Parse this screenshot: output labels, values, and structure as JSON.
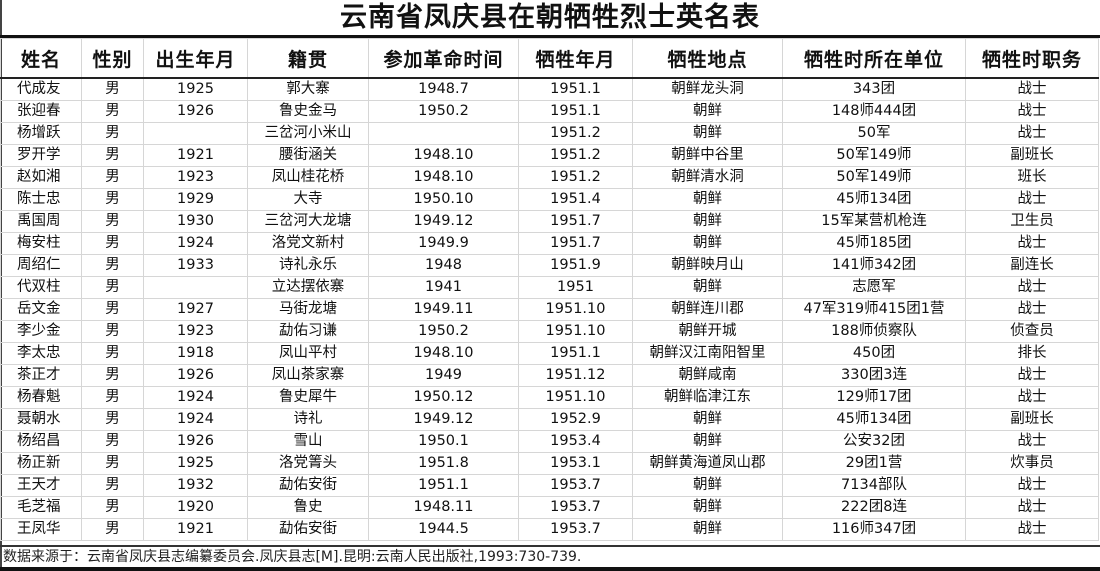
{
  "title": "云南省凤庆县在朝牺牲烈士英名表",
  "columns": [
    "姓名",
    "性别",
    "出生年月",
    "籍贯",
    "参加革命时间",
    "牺牲年月",
    "牺牲地点",
    "牺牲时所在单位",
    "牺牲时职务"
  ],
  "rows": [
    [
      "代成友",
      "男",
      "1925",
      "郭大寨",
      "1948.7",
      "1951.1",
      "朝鲜龙头洞",
      "343团",
      "战士"
    ],
    [
      "张迎春",
      "男",
      "1926",
      "鲁史金马",
      "1950.2",
      "1951.1",
      "朝鲜",
      "148师444团",
      "战士"
    ],
    [
      "杨增跃",
      "男",
      "",
      "三岔河小米山",
      "",
      "1951.2",
      "朝鲜",
      "50军",
      "战士"
    ],
    [
      "罗开学",
      "男",
      "1921",
      "腰街涵关",
      "1948.10",
      "1951.2",
      "朝鲜中谷里",
      "50军149师",
      "副班长"
    ],
    [
      "赵如湘",
      "男",
      "1923",
      "凤山桂花桥",
      "1948.10",
      "1951.2",
      "朝鲜清水洞",
      "50军149师",
      "班长"
    ],
    [
      "陈士忠",
      "男",
      "1929",
      "大寺",
      "1950.10",
      "1951.4",
      "朝鲜",
      "45师134团",
      "战士"
    ],
    [
      "禹国周",
      "男",
      "1930",
      "三岔河大龙塘",
      "1949.12",
      "1951.7",
      "朝鲜",
      "15军某营机枪连",
      "卫生员"
    ],
    [
      "梅安柱",
      "男",
      "1924",
      "洛党文新村",
      "1949.9",
      "1951.7",
      "朝鲜",
      "45师185团",
      "战士"
    ],
    [
      "周绍仁",
      "男",
      "1933",
      "诗礼永乐",
      "1948",
      "1951.9",
      "朝鲜映月山",
      "141师342团",
      "副连长"
    ],
    [
      "代双柱",
      "男",
      "",
      "立达摆依寨",
      "1941",
      "1951",
      "朝鲜",
      "志愿军",
      "战士"
    ],
    [
      "岳文金",
      "男",
      "1927",
      "马街龙塘",
      "1949.11",
      "1951.10",
      "朝鲜连川郡",
      "47军319师415团1营",
      "战士"
    ],
    [
      "李少金",
      "男",
      "1923",
      "勐佑习谦",
      "1950.2",
      "1951.10",
      "朝鲜开城",
      "188师侦察队",
      "侦查员"
    ],
    [
      "李太忠",
      "男",
      "1918",
      "凤山平村",
      "1948.10",
      "1951.1",
      "朝鲜汉江南阳智里",
      "450团",
      "排长"
    ],
    [
      "茶正才",
      "男",
      "1926",
      "凤山茶家寨",
      "1949",
      "1951.12",
      "朝鲜咸南",
      "330团3连",
      "战士"
    ],
    [
      "杨春魁",
      "男",
      "1924",
      "鲁史犀牛",
      "1950.12",
      "1951.10",
      "朝鲜临津江东",
      "129师17团",
      "战士"
    ],
    [
      "聂朝水",
      "男",
      "1924",
      "诗礼",
      "1949.12",
      "1952.9",
      "朝鲜",
      "45师134团",
      "副班长"
    ],
    [
      "杨绍昌",
      "男",
      "1926",
      "雪山",
      "1950.1",
      "1953.4",
      "朝鲜",
      "公安32团",
      "战士"
    ],
    [
      "杨正新",
      "男",
      "1925",
      "洛党箐头",
      "1951.8",
      "1953.1",
      "朝鲜黄海道凤山郡",
      "29团1营",
      "炊事员"
    ],
    [
      "王天才",
      "男",
      "1932",
      "勐佑安街",
      "1951.1",
      "1953.7",
      "朝鲜",
      "7134部队",
      "战士"
    ],
    [
      "毛芝福",
      "男",
      "1920",
      "鲁史",
      "1948.11",
      "1953.7",
      "朝鲜",
      "222团8连",
      "战士"
    ],
    [
      "王凤华",
      "男",
      "1921",
      "勐佑安街",
      "1944.5",
      "1953.7",
      "朝鲜",
      "116师347团",
      "战士"
    ]
  ],
  "footer": "数据来源于：云南省凤庆县志编纂委员会.凤庆县志[M].昆明:云南人民出版社,1993:730-739."
}
